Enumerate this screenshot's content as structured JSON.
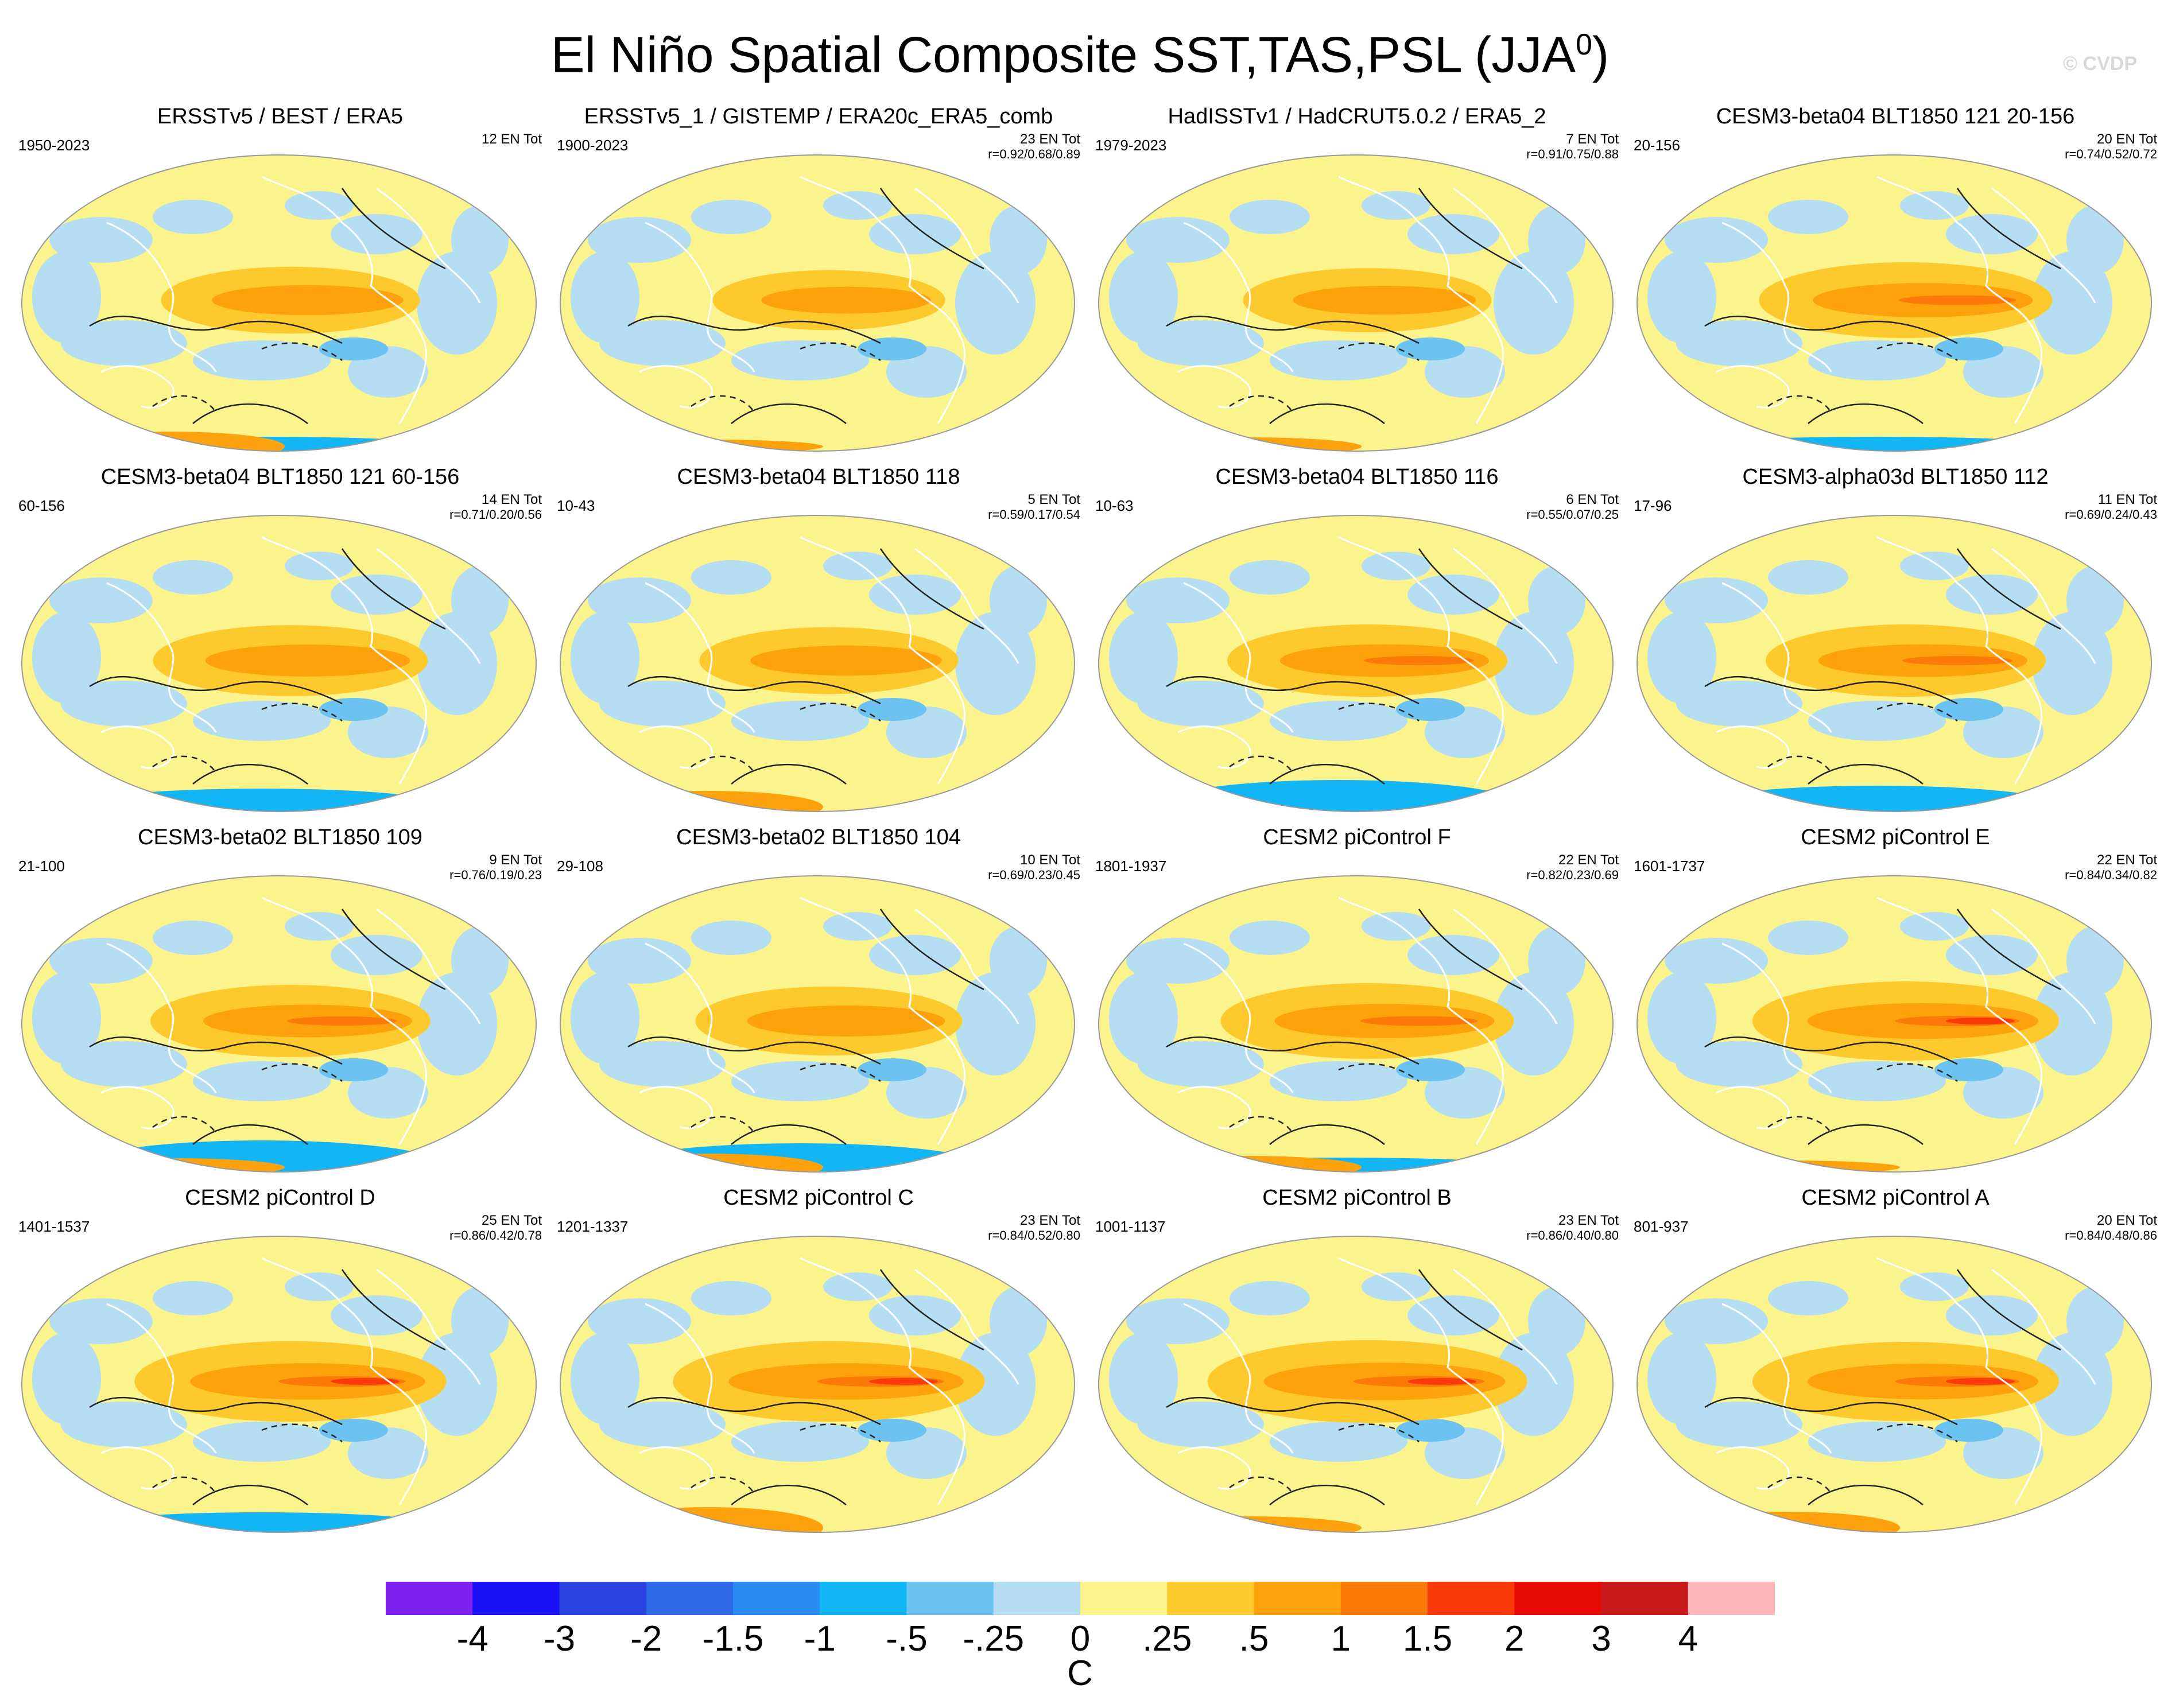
{
  "page": {
    "title_main": "El Niño Spatial Composite SST,TAS,PSL (JJA",
    "title_sup": "0",
    "title_close": ")",
    "watermark": "© CVDP"
  },
  "chart_data": {
    "type": "heatmap",
    "title": "El Niño Spatial Composite SST,TAS,PSL (JJA0)",
    "units": "C",
    "colorbar": {
      "ticks": [
        "-4",
        "-3",
        "-2",
        "-1.5",
        "-1",
        "-.5",
        "-.25",
        "0",
        ".25",
        ".5",
        "1",
        "1.5",
        "2",
        "3",
        "4"
      ],
      "colors": [
        "#7d20f0",
        "#1a10f5",
        "#2a44e0",
        "#2f6ae8",
        "#2a8cf5",
        "#12b6f5",
        "#6cc2f0",
        "#b6def3",
        "#fbf38b",
        "#fec92c",
        "#fda20c",
        "#fd7a08",
        "#fa3a08",
        "#e80a05",
        "#c81a1a",
        "#feb6ba"
      ]
    },
    "panels": [
      {
        "title": "ERSSTv5 / BEST / ERA5",
        "years": "1950-2023",
        "n_tot": "12 EN Tot",
        "r": "",
        "warm": 0.72,
        "cold_south": 0.1,
        "warm_south": 0.45
      },
      {
        "title": "ERSSTv5_1 / GISTEMP / ERA20c_ERA5_comb",
        "years": "1900-2023",
        "n_tot": "23 EN Tot",
        "r": "r=0.92/0.68/0.89",
        "warm": 0.62,
        "cold_south": 0.0,
        "warm_south": 0.1
      },
      {
        "title": "HadISSTv1 / HadCRUT5.0.2 / ERA5_2",
        "years": "1979-2023",
        "n_tot": "7 EN Tot",
        "r": "r=0.91/0.75/0.88",
        "warm": 0.68,
        "cold_south": 0.0,
        "warm_south": 0.2
      },
      {
        "title": "CESM3-beta04 BLT1850 121 20-156",
        "years": "20-156",
        "n_tot": "20 EN Tot",
        "r": "r=0.74/0.52/0.72",
        "warm": 0.85,
        "cold_south": 0.1,
        "warm_south": 0.0
      },
      {
        "title": "CESM3-beta04 BLT1850 121 60-156",
        "years": "60-156",
        "n_tot": "14 EN Tot",
        "r": "r=0.71/0.20/0.56",
        "warm": 0.78,
        "cold_south": 0.4,
        "warm_south": 0.0
      },
      {
        "title": "CESM3-beta04 BLT1850 118",
        "years": "10-43",
        "n_tot": "5 EN Tot",
        "r": "r=0.59/0.17/0.54",
        "warm": 0.72,
        "cold_south": 0.0,
        "warm_south": 0.5
      },
      {
        "title": "CESM3-beta04 BLT1850 116",
        "years": "10-63",
        "n_tot": "6 EN Tot",
        "r": "r=0.55/0.07/0.25",
        "warm": 0.8,
        "cold_south": 0.7,
        "warm_south": 0.0
      },
      {
        "title": "CESM3-alpha03d BLT1850 112",
        "years": "17-96",
        "n_tot": "11 EN Tot",
        "r": "r=0.69/0.24/0.43",
        "warm": 0.8,
        "cold_south": 0.5,
        "warm_south": 0.0
      },
      {
        "title": "CESM3-beta02 BLT1850 109",
        "years": "21-100",
        "n_tot": "9 EN Tot",
        "r": "r=0.76/0.19/0.23",
        "warm": 0.8,
        "cold_south": 0.7,
        "warm_south": 0.2
      },
      {
        "title": "CESM3-beta02 BLT1850 104",
        "years": "29-108",
        "n_tot": "10 EN Tot",
        "r": "r=0.69/0.23/0.45",
        "warm": 0.75,
        "cold_south": 0.6,
        "warm_south": 0.4
      },
      {
        "title": "CESM2 piControl F",
        "years": "1801-1937",
        "n_tot": "22 EN Tot",
        "r": "r=0.82/0.23/0.69",
        "warm": 0.85,
        "cold_south": 0.1,
        "warm_south": 0.3
      },
      {
        "title": "CESM2 piControl E",
        "years": "1601-1737",
        "n_tot": "22 EN Tot",
        "r": "r=0.84/0.34/0.82",
        "warm": 0.9,
        "cold_south": 0.0,
        "warm_south": 0.1
      },
      {
        "title": "CESM2 piControl D",
        "years": "1401-1537",
        "n_tot": "25 EN Tot",
        "r": "r=0.86/0.42/0.78",
        "warm": 0.92,
        "cold_south": 0.3,
        "warm_south": 0.0
      },
      {
        "title": "CESM2 piControl C",
        "years": "1201-1337",
        "n_tot": "23 EN Tot",
        "r": "r=0.84/0.52/0.80",
        "warm": 0.92,
        "cold_south": 0.0,
        "warm_south": 0.7
      },
      {
        "title": "CESM2 piControl B",
        "years": "1001-1137",
        "n_tot": "23 EN Tot",
        "r": "r=0.86/0.40/0.80",
        "warm": 0.95,
        "cold_south": 0.0,
        "warm_south": 0.3
      },
      {
        "title": "CESM2 piControl A",
        "years": "801-937",
        "n_tot": "20 EN Tot",
        "r": "r=0.84/0.48/0.86",
        "warm": 0.9,
        "cold_south": 0.0,
        "warm_south": 0.5
      }
    ]
  }
}
